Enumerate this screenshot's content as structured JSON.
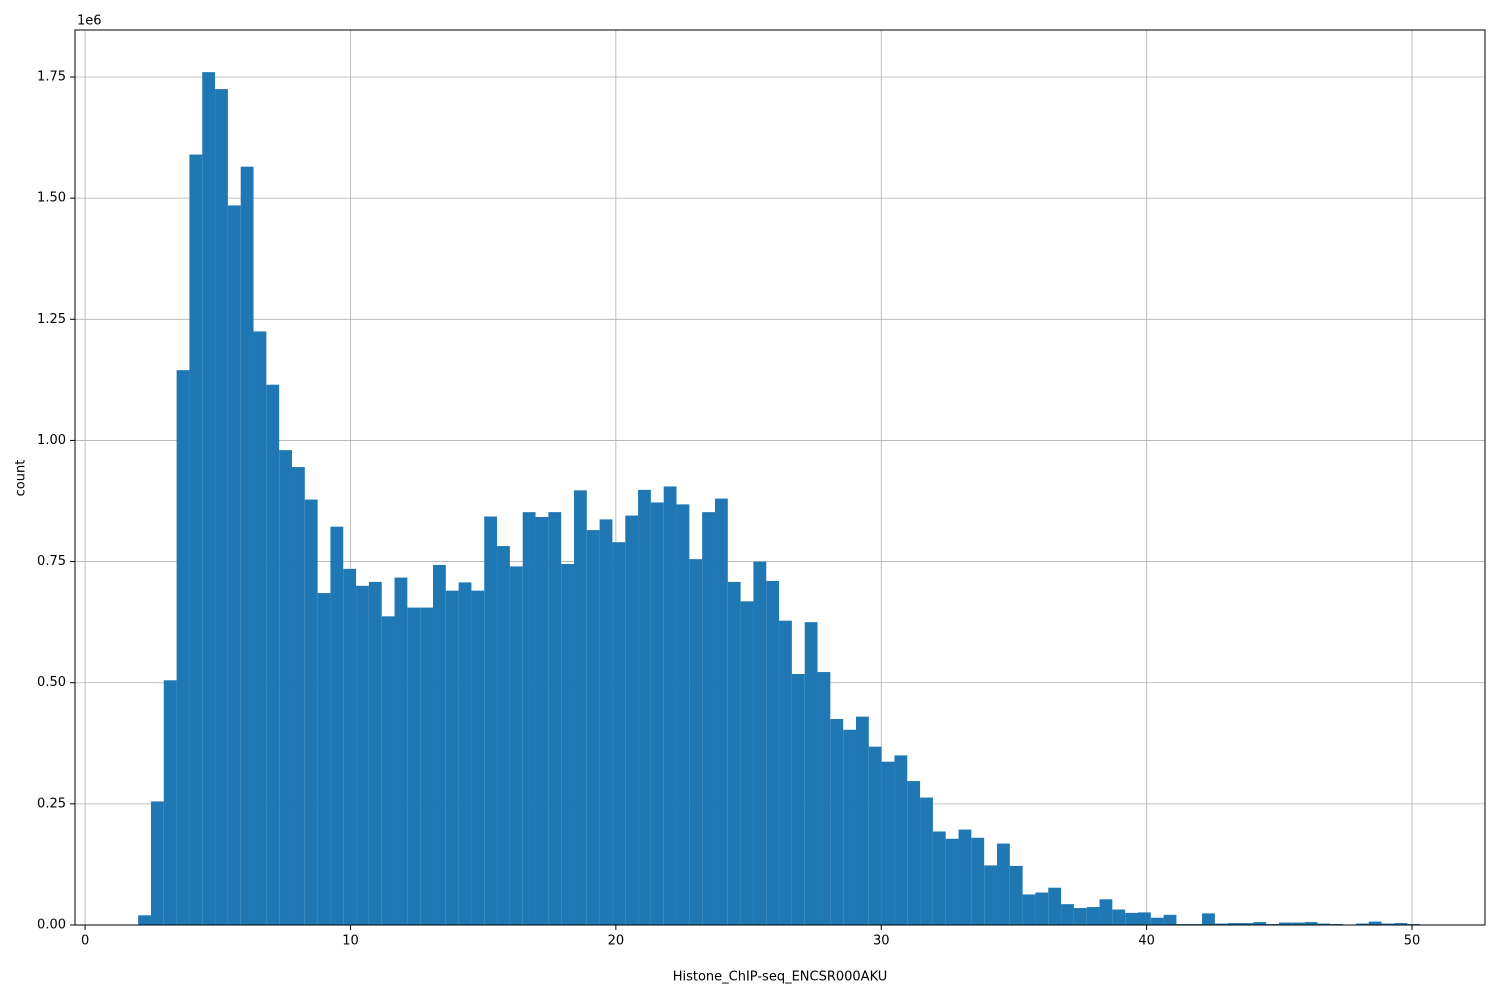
{
  "chart_data": {
    "type": "histogram",
    "x_label": "Histone_ChIP-seq_ENCSR000AKU",
    "y_label": "count",
    "y_offset_label": "1e6",
    "color": "#1f77b4",
    "grid": true,
    "bins": [
      2,
      2.483,
      2.966,
      3.449,
      3.932,
      4.415,
      4.898,
      5.381,
      5.864,
      6.347,
      6.83,
      7.313,
      7.796,
      8.279,
      8.762,
      9.245,
      9.728,
      10.211,
      10.694,
      11.177,
      11.66,
      12.143,
      12.626,
      13.109,
      13.592,
      14.075,
      14.558,
      15.041,
      15.524,
      16.007,
      16.49,
      16.973,
      17.456,
      17.939,
      18.422,
      18.905,
      19.388,
      19.871,
      20.354,
      20.837,
      21.32,
      21.803,
      22.286,
      22.769,
      23.252,
      23.735,
      24.218,
      24.701,
      25.184,
      25.667,
      26.15,
      26.633,
      27.116,
      27.599,
      28.082,
      28.565,
      29.048,
      29.531,
      30.014,
      30.497,
      30.98,
      31.463,
      31.946,
      32.429,
      32.912,
      33.395,
      33.878,
      34.361,
      34.844,
      35.327,
      35.81,
      36.293,
      36.776,
      37.259,
      37.742,
      38.225,
      38.708,
      39.191,
      39.674,
      40.157,
      40.64,
      41.123,
      41.606,
      42.089,
      42.572,
      43.055,
      43.538,
      44.021,
      44.504,
      44.987,
      45.47,
      45.953,
      46.436,
      46.919,
      47.402,
      47.885,
      48.368,
      48.851,
      49.334,
      49.817,
      50.3
    ],
    "values": [
      20000,
      255000,
      505000,
      1145000,
      1590000,
      1760000,
      1725000,
      1485000,
      1565000,
      1225000,
      1115000,
      980000,
      945000,
      878000,
      685000,
      822000,
      735000,
      700000,
      708000,
      637000,
      717000,
      655000,
      655000,
      743000,
      690000,
      707000,
      690000,
      843000,
      782000,
      740000,
      852000,
      842000,
      852000,
      745000,
      897000,
      815000,
      837000,
      790000,
      845000,
      898000,
      872000,
      905000,
      868000,
      755000,
      852000,
      880000,
      708000,
      668000,
      750000,
      710000,
      628000,
      518000,
      625000,
      522000,
      425000,
      403000,
      430000,
      368000,
      337000,
      350000,
      297000,
      263000,
      193000,
      178000,
      197000,
      180000,
      123000,
      168000,
      122000,
      63000,
      67000,
      77000,
      43000,
      35000,
      37000,
      53000,
      32000,
      25000,
      26000,
      15000,
      21000,
      2000,
      2000,
      24000,
      3000,
      4000,
      4000,
      6000,
      2000,
      5000,
      5000,
      6000,
      3000,
      2000,
      0,
      3000,
      7000,
      3000,
      4000,
      2000
    ],
    "xlim": [
      -0.38,
      52.75
    ],
    "ylim": [
      0,
      1847000
    ],
    "xticks": [
      0,
      10,
      20,
      30,
      40,
      50
    ],
    "yticks": [
      {
        "value": 0,
        "label": "0.00"
      },
      {
        "value": 250000,
        "label": "0.25"
      },
      {
        "value": 500000,
        "label": "0.50"
      },
      {
        "value": 750000,
        "label": "0.75"
      },
      {
        "value": 1000000,
        "label": "1.00"
      },
      {
        "value": 1250000,
        "label": "1.25"
      },
      {
        "value": 1500000,
        "label": "1.50"
      },
      {
        "value": 1750000,
        "label": "1.75"
      }
    ]
  }
}
